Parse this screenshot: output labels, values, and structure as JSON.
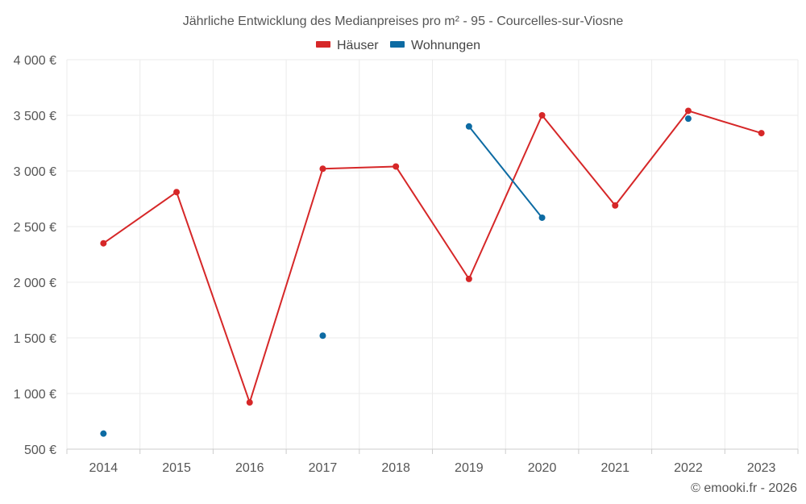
{
  "chart_data": {
    "type": "line",
    "title": "Jährliche Entwicklung des Medianpreises pro m² - 95 - Courcelles-sur-Viosne",
    "categories": [
      "2014",
      "2015",
      "2016",
      "2017",
      "2018",
      "2019",
      "2020",
      "2021",
      "2022",
      "2023"
    ],
    "ylim": [
      500,
      4000
    ],
    "yticks": [
      500,
      1000,
      1500,
      2000,
      2500,
      3000,
      3500,
      4000
    ],
    "ytick_labels": [
      "500 €",
      "1 000 €",
      "1 500 €",
      "2 000 €",
      "2 500 €",
      "3 000 €",
      "3 500 €",
      "4 000 €"
    ],
    "series": [
      {
        "name": "Häuser",
        "color": "#d62728",
        "values": [
          2350,
          2810,
          920,
          3020,
          3040,
          2030,
          3500,
          2690,
          3540,
          3340
        ]
      },
      {
        "name": "Wohnungen",
        "color": "#0d6ba3",
        "values": [
          640,
          null,
          null,
          1520,
          null,
          3400,
          2580,
          null,
          3470,
          null
        ]
      }
    ],
    "legend_position": "top-center",
    "grid": true
  },
  "credit": "© emooki.fr - 2026"
}
